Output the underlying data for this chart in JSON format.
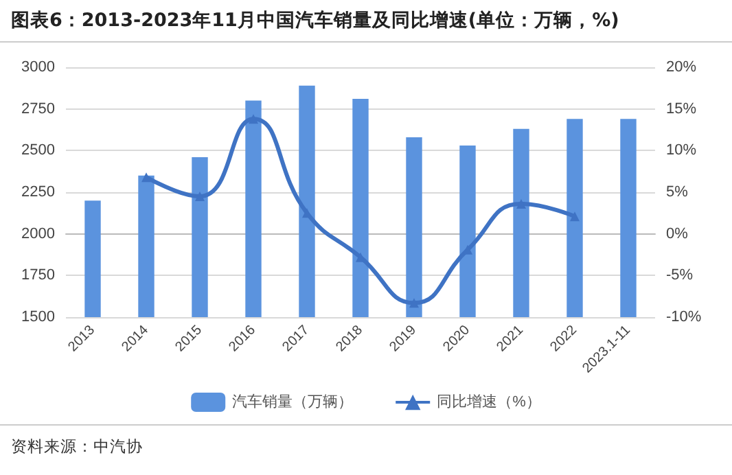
{
  "chart_data": {
    "type": "bar",
    "title": "图表6：2013-2023年11月中国汽车销量及同比增速(单位：万辆，%)",
    "categories": [
      "2013",
      "2014",
      "2015",
      "2016",
      "2017",
      "2018",
      "2019",
      "2020",
      "2021",
      "2022",
      "2023.1-11"
    ],
    "series": [
      {
        "name": "汽车销量（万辆）",
        "color": "#5b93de",
        "values": [
          2200,
          2350,
          2460,
          2800,
          2890,
          2810,
          2580,
          2530,
          2630,
          2690,
          2690
        ]
      },
      {
        "name": "同比增速（%）",
        "type": "line",
        "axis": "y2",
        "color": "#3f73c4",
        "marker": "triangle",
        "values": [
          null,
          6.8,
          4.5,
          13.8,
          2.5,
          -2.8,
          -8.3,
          -1.9,
          3.6,
          2.1,
          null
        ]
      }
    ],
    "ylim": [
      1500,
      3000
    ],
    "yticks": [
      1500,
      1750,
      2000,
      2250,
      2500,
      2750,
      3000
    ],
    "y2lim": [
      -10,
      20
    ],
    "y2ticks": [
      {
        "value": -10,
        "label": "-10%"
      },
      {
        "value": -5,
        "label": "-5%"
      },
      {
        "value": 0,
        "label": "0%"
      },
      {
        "value": 5,
        "label": "5%"
      },
      {
        "value": 10,
        "label": "10%"
      },
      {
        "value": 15,
        "label": "15%"
      },
      {
        "value": 20,
        "label": "20%"
      }
    ],
    "grid": "y",
    "legend": "bottom",
    "annotations": [
      "资料来源：中汽协"
    ]
  }
}
